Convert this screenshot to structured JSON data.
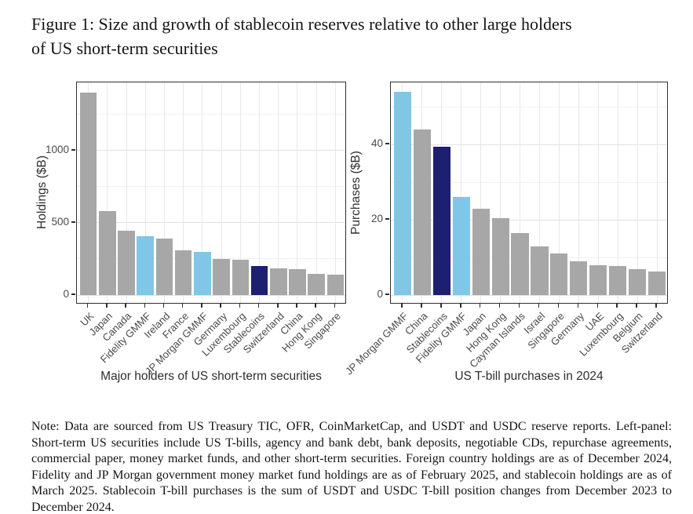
{
  "figure": {
    "title_lines": [
      "Figure 1: Size and growth of stablecoin reserves relative to other large holders",
      "of US short-term securities"
    ],
    "note": "Note: Data are sourced from US Treasury TIC, OFR, CoinMarketCap, and USDT and USDC reserve reports. Left-panel: Short-term US securities include US T-bills, agency and bank debt, bank deposits, negotiable CDs, repurchase agreements, commercial paper, money market funds, and other short-term securities. Foreign country holdings are as of December 2024, Fidelity and JP Morgan government money market fund holdings are as of February 2025, and stablecoin holdings are as of March 2025. Stablecoin T-bill purchases is the sum of USDT and USDC T-bill position changes from December 2023 to December 2024."
  },
  "palette": {
    "gray": "#A7A7A7",
    "skyblue": "#80C6E7",
    "navy": "#1D1F70"
  },
  "chart_data": [
    {
      "type": "bar",
      "panel": "left",
      "title": "",
      "xlabel": "Major holders of US short-term securities",
      "ylabel": "Holdings ($B)",
      "categories": [
        "UK",
        "Japan",
        "Canada",
        "Fidelity GMMF",
        "Ireland",
        "France",
        "JP Morgan GMMF",
        "Germany",
        "Luxembourg",
        "Stablecoins",
        "Switzerland",
        "China",
        "Hong Kong",
        "Singapore"
      ],
      "values": [
        1400,
        580,
        445,
        405,
        390,
        310,
        297,
        250,
        242,
        202,
        186,
        179,
        147,
        142
      ],
      "bar_colors": [
        "gray",
        "gray",
        "gray",
        "skyblue",
        "gray",
        "gray",
        "skyblue",
        "gray",
        "gray",
        "navy",
        "gray",
        "gray",
        "gray",
        "gray"
      ],
      "ylim": [
        0,
        1400
      ],
      "yticks": [
        0,
        500,
        1000
      ],
      "yticks_minor": [
        250,
        750,
        1250
      ],
      "axis_range": [
        -65,
        1470
      ],
      "grid": true,
      "legend": "none"
    },
    {
      "type": "bar",
      "panel": "right",
      "title": "",
      "xlabel": "US T-bill purchases in 2024",
      "ylabel": "Purchases ($B)",
      "categories": [
        "JP Morgan GMMF",
        "China",
        "Stablecoins",
        "Fidelity GMMF",
        "Japan",
        "Hong Kong",
        "Cayman Islands",
        "Israel",
        "Singapore",
        "Germany",
        "UAE",
        "Luxembourg",
        "Belgium",
        "Switzerland"
      ],
      "values": [
        54,
        44,
        39.5,
        26,
        23,
        20.5,
        16.5,
        13,
        11,
        9,
        7.9,
        7.8,
        6.8,
        6.3
      ],
      "bar_colors": [
        "skyblue",
        "gray",
        "navy",
        "skyblue",
        "gray",
        "gray",
        "gray",
        "gray",
        "gray",
        "gray",
        "gray",
        "gray",
        "gray",
        "gray"
      ],
      "ylim": [
        0,
        54
      ],
      "yticks": [
        0,
        20,
        40
      ],
      "yticks_minor": [
        10,
        30,
        50
      ],
      "axis_range": [
        -2.5,
        56.5
      ],
      "grid": true,
      "legend": "none"
    }
  ]
}
